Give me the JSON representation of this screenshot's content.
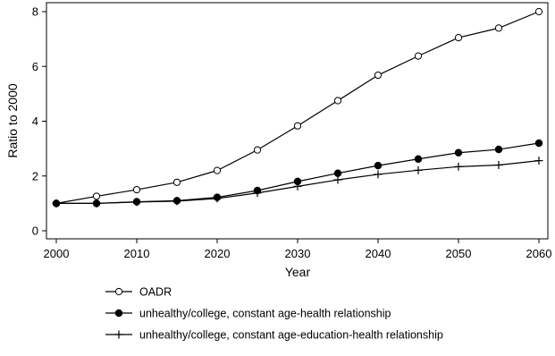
{
  "chart_data": {
    "type": "line",
    "xlabel": "Year",
    "ylabel": "Ratio to 2000",
    "xlim": [
      2000,
      2060
    ],
    "ylim": [
      0,
      8
    ],
    "xticks": [
      2000,
      2010,
      2020,
      2030,
      2040,
      2050,
      2060
    ],
    "yticks": [
      0,
      2,
      4,
      6,
      8
    ],
    "grid": false,
    "legend_position": "bottom",
    "x": [
      2000,
      2005,
      2010,
      2015,
      2020,
      2025,
      2030,
      2035,
      2040,
      2045,
      2050,
      2055,
      2060
    ],
    "series": [
      {
        "name": "OADR",
        "marker": "hollow-circle",
        "values": [
          1.0,
          1.26,
          1.5,
          1.77,
          2.2,
          2.95,
          3.83,
          4.75,
          5.68,
          6.38,
          7.05,
          7.4,
          8.0
        ]
      },
      {
        "name": "unhealthy/college, constant age-health relationship",
        "marker": "filled-circle",
        "values": [
          1.0,
          1.0,
          1.06,
          1.1,
          1.22,
          1.47,
          1.8,
          2.1,
          2.38,
          2.62,
          2.85,
          2.97,
          3.2
        ]
      },
      {
        "name": "unhealthy/college, constant age-education-health relationship",
        "marker": "plus",
        "values": [
          1.0,
          1.0,
          1.05,
          1.08,
          1.18,
          1.38,
          1.62,
          1.86,
          2.06,
          2.21,
          2.34,
          2.4,
          2.56
        ]
      }
    ]
  },
  "colors": {
    "line": "#000000",
    "background": "#ffffff"
  }
}
